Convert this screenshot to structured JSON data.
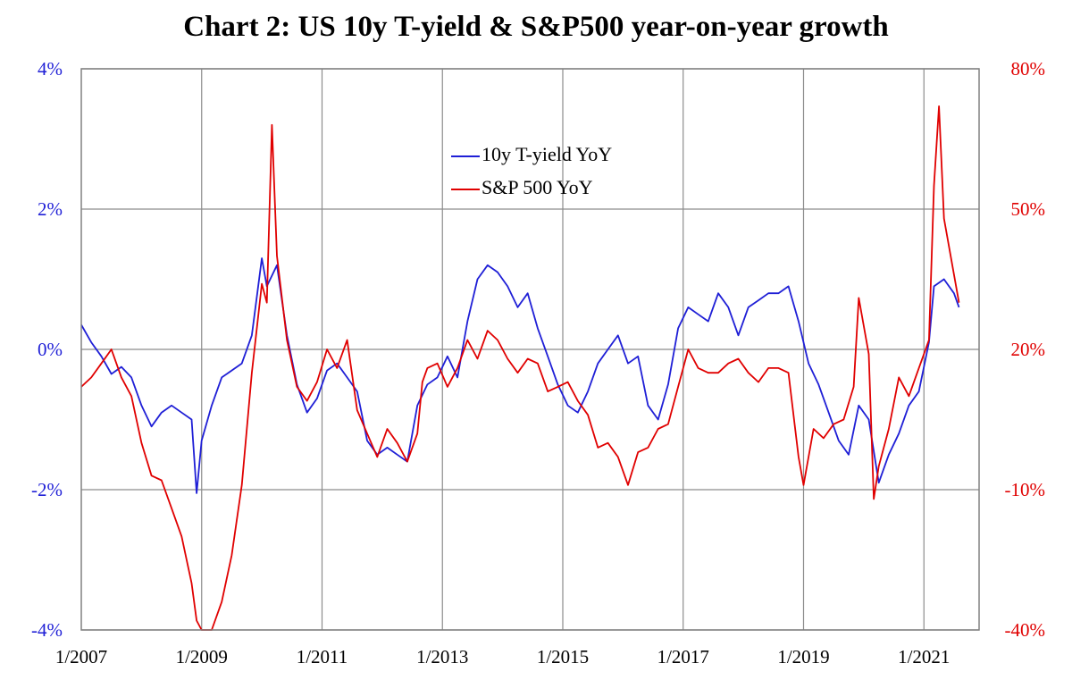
{
  "chart_data": {
    "type": "line",
    "title": "Chart 2: US 10y T-yield & S&P500 year-on-year growth",
    "x_ticks": [
      "1/2007",
      "1/2009",
      "1/2011",
      "1/2013",
      "1/2015",
      "1/2017",
      "1/2019",
      "1/2021"
    ],
    "xlim": [
      "2007-01",
      "2021-12"
    ],
    "y_left": {
      "ticks": [
        "4%",
        "2%",
        "0%",
        "-2%",
        "-4%"
      ],
      "ylim": [
        -4,
        4
      ],
      "color": "#1f1fd6"
    },
    "y_right": {
      "ticks": [
        "80%",
        "50%",
        "20%",
        "-10%",
        "-40%"
      ],
      "ylim": [
        -40,
        80
      ],
      "color": "#e00000"
    },
    "grid": true,
    "legend_position": "top-center",
    "series": [
      {
        "name": "10y T-yield YoY",
        "axis": "left",
        "color": "#1f1fd6",
        "points": [
          [
            "2007-01",
            0.35
          ],
          [
            "2007-03",
            0.1
          ],
          [
            "2007-05",
            -0.1
          ],
          [
            "2007-07",
            -0.35
          ],
          [
            "2007-09",
            -0.25
          ],
          [
            "2007-11",
            -0.4
          ],
          [
            "2008-01",
            -0.8
          ],
          [
            "2008-03",
            -1.1
          ],
          [
            "2008-05",
            -0.9
          ],
          [
            "2008-07",
            -0.8
          ],
          [
            "2008-09",
            -0.9
          ],
          [
            "2008-11",
            -1.0
          ],
          [
            "2008-12",
            -2.05
          ],
          [
            "2009-01",
            -1.3
          ],
          [
            "2009-03",
            -0.8
          ],
          [
            "2009-05",
            -0.4
          ],
          [
            "2009-07",
            -0.3
          ],
          [
            "2009-09",
            -0.2
          ],
          [
            "2009-11",
            0.2
          ],
          [
            "2010-01",
            1.3
          ],
          [
            "2010-02",
            0.9
          ],
          [
            "2010-04",
            1.2
          ],
          [
            "2010-06",
            0.2
          ],
          [
            "2010-08",
            -0.5
          ],
          [
            "2010-10",
            -0.9
          ],
          [
            "2010-12",
            -0.7
          ],
          [
            "2011-02",
            -0.3
          ],
          [
            "2011-04",
            -0.2
          ],
          [
            "2011-06",
            -0.4
          ],
          [
            "2011-08",
            -0.6
          ],
          [
            "2011-10",
            -1.3
          ],
          [
            "2011-12",
            -1.5
          ],
          [
            "2012-02",
            -1.4
          ],
          [
            "2012-04",
            -1.5
          ],
          [
            "2012-06",
            -1.6
          ],
          [
            "2012-08",
            -0.8
          ],
          [
            "2012-10",
            -0.5
          ],
          [
            "2012-12",
            -0.4
          ],
          [
            "2013-02",
            -0.1
          ],
          [
            "2013-04",
            -0.4
          ],
          [
            "2013-06",
            0.4
          ],
          [
            "2013-08",
            1.0
          ],
          [
            "2013-10",
            1.2
          ],
          [
            "2013-12",
            1.1
          ],
          [
            "2014-02",
            0.9
          ],
          [
            "2014-04",
            0.6
          ],
          [
            "2014-06",
            0.8
          ],
          [
            "2014-08",
            0.3
          ],
          [
            "2014-10",
            -0.1
          ],
          [
            "2014-12",
            -0.5
          ],
          [
            "2015-02",
            -0.8
          ],
          [
            "2015-04",
            -0.9
          ],
          [
            "2015-06",
            -0.6
          ],
          [
            "2015-08",
            -0.2
          ],
          [
            "2015-10",
            0.0
          ],
          [
            "2015-12",
            0.2
          ],
          [
            "2016-02",
            -0.2
          ],
          [
            "2016-04",
            -0.1
          ],
          [
            "2016-06",
            -0.8
          ],
          [
            "2016-08",
            -1.0
          ],
          [
            "2016-10",
            -0.5
          ],
          [
            "2016-12",
            0.3
          ],
          [
            "2017-02",
            0.6
          ],
          [
            "2017-04",
            0.5
          ],
          [
            "2017-06",
            0.4
          ],
          [
            "2017-08",
            0.8
          ],
          [
            "2017-10",
            0.6
          ],
          [
            "2017-12",
            0.2
          ],
          [
            "2018-02",
            0.6
          ],
          [
            "2018-04",
            0.7
          ],
          [
            "2018-06",
            0.8
          ],
          [
            "2018-08",
            0.8
          ],
          [
            "2018-10",
            0.9
          ],
          [
            "2018-12",
            0.4
          ],
          [
            "2019-02",
            -0.2
          ],
          [
            "2019-04",
            -0.5
          ],
          [
            "2019-06",
            -0.9
          ],
          [
            "2019-08",
            -1.3
          ],
          [
            "2019-10",
            -1.5
          ],
          [
            "2019-12",
            -0.8
          ],
          [
            "2020-02",
            -1.0
          ],
          [
            "2020-04",
            -1.9
          ],
          [
            "2020-06",
            -1.5
          ],
          [
            "2020-08",
            -1.2
          ],
          [
            "2020-10",
            -0.8
          ],
          [
            "2020-12",
            -0.6
          ],
          [
            "2021-02",
            0.1
          ],
          [
            "2021-03",
            0.9
          ],
          [
            "2021-05",
            1.0
          ],
          [
            "2021-07",
            0.8
          ],
          [
            "2021-08",
            0.6
          ]
        ]
      },
      {
        "name": "S&P 500 YoY",
        "axis": "right",
        "color": "#e00000",
        "points": [
          [
            "2007-01",
            12
          ],
          [
            "2007-03",
            14
          ],
          [
            "2007-05",
            17
          ],
          [
            "2007-07",
            20
          ],
          [
            "2007-09",
            14
          ],
          [
            "2007-11",
            10
          ],
          [
            "2008-01",
            0
          ],
          [
            "2008-03",
            -7
          ],
          [
            "2008-05",
            -8
          ],
          [
            "2008-07",
            -14
          ],
          [
            "2008-09",
            -20
          ],
          [
            "2008-11",
            -30
          ],
          [
            "2008-12",
            -38
          ],
          [
            "2009-01",
            -40
          ],
          [
            "2009-02",
            -42
          ],
          [
            "2009-03",
            -40
          ],
          [
            "2009-05",
            -34
          ],
          [
            "2009-07",
            -24
          ],
          [
            "2009-09",
            -9
          ],
          [
            "2009-11",
            15
          ],
          [
            "2010-01",
            34
          ],
          [
            "2010-02",
            30
          ],
          [
            "2010-03",
            68
          ],
          [
            "2010-04",
            40
          ],
          [
            "2010-06",
            22
          ],
          [
            "2010-08",
            12
          ],
          [
            "2010-10",
            9
          ],
          [
            "2010-12",
            13
          ],
          [
            "2011-02",
            20
          ],
          [
            "2011-04",
            16
          ],
          [
            "2011-06",
            22
          ],
          [
            "2011-08",
            7
          ],
          [
            "2011-10",
            2
          ],
          [
            "2011-12",
            -3
          ],
          [
            "2012-02",
            3
          ],
          [
            "2012-04",
            0
          ],
          [
            "2012-06",
            -4
          ],
          [
            "2012-08",
            2
          ],
          [
            "2012-09",
            13
          ],
          [
            "2012-10",
            16
          ],
          [
            "2012-12",
            17
          ],
          [
            "2013-02",
            12
          ],
          [
            "2013-04",
            16
          ],
          [
            "2013-06",
            22
          ],
          [
            "2013-08",
            18
          ],
          [
            "2013-10",
            24
          ],
          [
            "2013-12",
            22
          ],
          [
            "2014-02",
            18
          ],
          [
            "2014-04",
            15
          ],
          [
            "2014-06",
            18
          ],
          [
            "2014-08",
            17
          ],
          [
            "2014-10",
            11
          ],
          [
            "2014-12",
            12
          ],
          [
            "2015-02",
            13
          ],
          [
            "2015-04",
            9
          ],
          [
            "2015-06",
            6
          ],
          [
            "2015-08",
            -1
          ],
          [
            "2015-10",
            0
          ],
          [
            "2015-12",
            -3
          ],
          [
            "2016-02",
            -9
          ],
          [
            "2016-04",
            -2
          ],
          [
            "2016-06",
            -1
          ],
          [
            "2016-08",
            3
          ],
          [
            "2016-10",
            4
          ],
          [
            "2016-12",
            12
          ],
          [
            "2017-02",
            20
          ],
          [
            "2017-04",
            16
          ],
          [
            "2017-06",
            15
          ],
          [
            "2017-08",
            15
          ],
          [
            "2017-10",
            17
          ],
          [
            "2017-12",
            18
          ],
          [
            "2018-02",
            15
          ],
          [
            "2018-04",
            13
          ],
          [
            "2018-06",
            16
          ],
          [
            "2018-08",
            16
          ],
          [
            "2018-10",
            15
          ],
          [
            "2018-12",
            -3
          ],
          [
            "2019-01",
            -9
          ],
          [
            "2019-03",
            3
          ],
          [
            "2019-05",
            1
          ],
          [
            "2019-07",
            4
          ],
          [
            "2019-09",
            5
          ],
          [
            "2019-11",
            12
          ],
          [
            "2019-12",
            31
          ],
          [
            "2020-02",
            19
          ],
          [
            "2020-03",
            -12
          ],
          [
            "2020-04",
            -5
          ],
          [
            "2020-06",
            3
          ],
          [
            "2020-08",
            14
          ],
          [
            "2020-10",
            10
          ],
          [
            "2020-12",
            16
          ],
          [
            "2021-02",
            22
          ],
          [
            "2021-03",
            55
          ],
          [
            "2021-04",
            72
          ],
          [
            "2021-05",
            48
          ],
          [
            "2021-07",
            36
          ],
          [
            "2021-08",
            30
          ]
        ]
      }
    ]
  }
}
